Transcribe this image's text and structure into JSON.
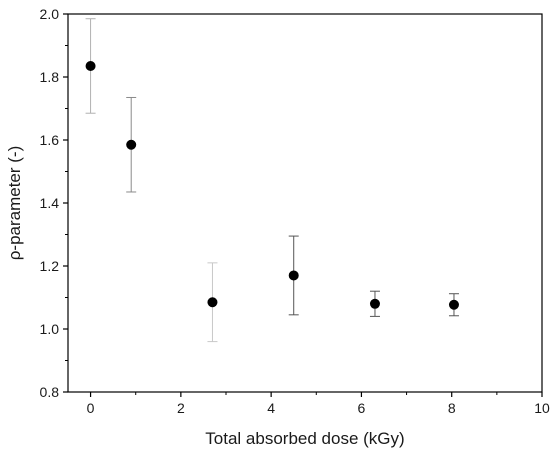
{
  "chart_data": {
    "type": "scatter",
    "xlabel": "Total absorbed dose (kGy)",
    "ylabel": "ρ-parameter (-)",
    "xlim": [
      -0.5,
      10
    ],
    "ylim": [
      0.8,
      2.0
    ],
    "x_ticks": [
      0,
      2,
      4,
      6,
      8,
      10
    ],
    "y_ticks": [
      0.8,
      1.0,
      1.2,
      1.4,
      1.6,
      1.8,
      2.0
    ],
    "x_tick_labels": [
      "0",
      "2",
      "4",
      "6",
      "8",
      "10"
    ],
    "y_tick_labels": [
      "0.8",
      "1.0",
      "1.2",
      "1.4",
      "1.6",
      "1.8",
      "2.0"
    ],
    "grid": false,
    "marker_color": "#000000",
    "errorbar_colors": [
      "#b0b0b0",
      "#8a8a8a",
      "#c8c8c8",
      "#555555",
      "#555555",
      "#555555"
    ],
    "points": [
      {
        "x": 0.0,
        "y": 1.835,
        "y_low": 1.685,
        "y_high": 1.985
      },
      {
        "x": 0.9,
        "y": 1.585,
        "y_low": 1.435,
        "y_high": 1.735
      },
      {
        "x": 2.7,
        "y": 1.085,
        "y_low": 0.96,
        "y_high": 1.21
      },
      {
        "x": 4.5,
        "y": 1.17,
        "y_low": 1.045,
        "y_high": 1.295
      },
      {
        "x": 6.3,
        "y": 1.08,
        "y_low": 1.04,
        "y_high": 1.12
      },
      {
        "x": 8.05,
        "y": 1.077,
        "y_low": 1.042,
        "y_high": 1.112
      }
    ]
  }
}
